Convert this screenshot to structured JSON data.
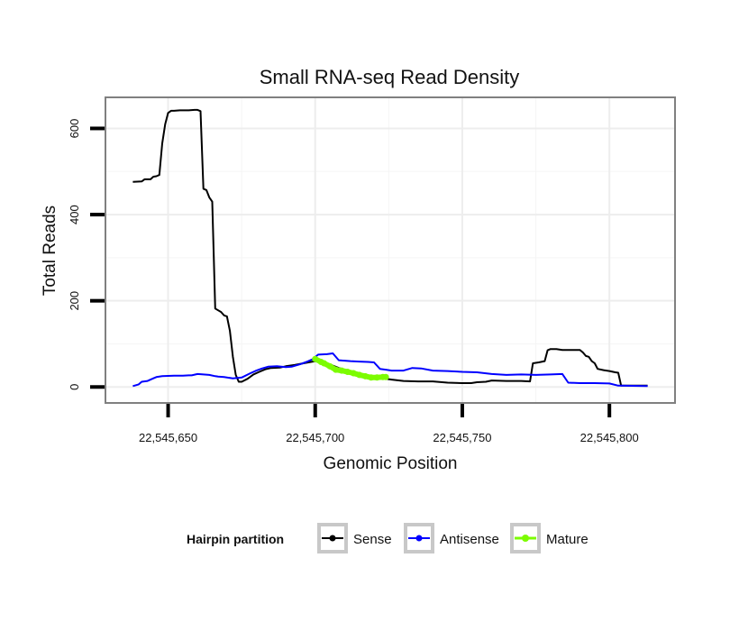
{
  "chart_data": {
    "type": "line",
    "title": "Small RNA-seq Read Density",
    "xlabel": "Genomic Position",
    "ylabel": "Total Reads",
    "xlim": [
      22545629,
      22545822
    ],
    "ylim": [
      -35,
      670
    ],
    "x_ticks": [
      {
        "value": 22545650,
        "label": "22,545,650"
      },
      {
        "value": 22545700,
        "label": "22,545,700"
      },
      {
        "value": 22545750,
        "label": "22,545,750"
      },
      {
        "value": 22545800,
        "label": "22,545,800"
      }
    ],
    "y_ticks": [
      {
        "value": 0,
        "label": "0"
      },
      {
        "value": 200,
        "label": "200"
      },
      {
        "value": 400,
        "label": "400"
      },
      {
        "value": 600,
        "label": "600"
      }
    ],
    "legend": {
      "title": "Hairpin partition",
      "position": "bottom",
      "entries": [
        {
          "label": "Sense",
          "color": "#000000"
        },
        {
          "label": "Antisense",
          "color": "#0000ff"
        },
        {
          "label": "Mature",
          "color": "#7cfc00"
        }
      ]
    },
    "series": [
      {
        "name": "Sense",
        "color": "#000000",
        "points": [
          [
            22545638,
            476
          ],
          [
            22545641,
            477
          ],
          [
            22545642,
            482
          ],
          [
            22545644,
            482
          ],
          [
            22545645,
            488
          ],
          [
            22545646,
            489
          ],
          [
            22545647,
            492
          ],
          [
            22545648,
            565
          ],
          [
            22545649,
            610
          ],
          [
            22545650,
            636
          ],
          [
            22545651,
            641
          ],
          [
            22545652,
            641
          ],
          [
            22545654,
            642
          ],
          [
            22545657,
            642
          ],
          [
            22545659,
            643
          ],
          [
            22545660,
            643
          ],
          [
            22545661,
            640
          ],
          [
            22545662,
            460
          ],
          [
            22545663,
            457
          ],
          [
            22545664,
            440
          ],
          [
            22545665,
            430
          ],
          [
            22545666,
            182
          ],
          [
            22545667,
            178
          ],
          [
            22545668,
            174
          ],
          [
            22545669,
            166
          ],
          [
            22545670,
            164
          ],
          [
            22545671,
            130
          ],
          [
            22545672,
            70
          ],
          [
            22545673,
            28
          ],
          [
            22545674,
            12
          ],
          [
            22545675,
            12
          ],
          [
            22545677,
            19
          ],
          [
            22545679,
            29
          ],
          [
            22545681,
            35
          ],
          [
            22545683,
            41
          ],
          [
            22545685,
            44
          ],
          [
            22545688,
            45
          ],
          [
            22545690,
            48
          ],
          [
            22545693,
            51
          ],
          [
            22545696,
            55
          ],
          [
            22545700,
            60
          ],
          [
            22545704,
            55
          ],
          [
            22545708,
            44
          ],
          [
            22545713,
            33
          ],
          [
            22545718,
            26
          ],
          [
            22545722,
            21
          ],
          [
            22545726,
            17
          ],
          [
            22545730,
            14
          ],
          [
            22545735,
            13
          ],
          [
            22545740,
            13
          ],
          [
            22545745,
            10
          ],
          [
            22545750,
            9
          ],
          [
            22545753,
            9
          ],
          [
            22545755,
            11
          ],
          [
            22545758,
            12
          ],
          [
            22545760,
            15
          ],
          [
            22545765,
            14
          ],
          [
            22545770,
            14
          ],
          [
            22545773,
            13
          ],
          [
            22545774,
            55
          ],
          [
            22545776,
            57
          ],
          [
            22545778,
            60
          ],
          [
            22545779,
            85
          ],
          [
            22545780,
            88
          ],
          [
            22545782,
            88
          ],
          [
            22545784,
            86
          ],
          [
            22545789,
            86
          ],
          [
            22545790,
            86
          ],
          [
            22545791,
            80
          ],
          [
            22545792,
            72
          ],
          [
            22545793,
            70
          ],
          [
            22545794,
            60
          ],
          [
            22545795,
            55
          ],
          [
            22545796,
            42
          ],
          [
            22545798,
            39
          ],
          [
            22545800,
            37
          ],
          [
            22545802,
            34
          ],
          [
            22545803,
            33
          ],
          [
            22545804,
            3
          ],
          [
            22545813,
            3
          ]
        ]
      },
      {
        "name": "Antisense",
        "color": "#0000ff",
        "points": [
          [
            22545638,
            2
          ],
          [
            22545640,
            6
          ],
          [
            22545641,
            12
          ],
          [
            22545643,
            14
          ],
          [
            22545645,
            20
          ],
          [
            22545646,
            23
          ],
          [
            22545648,
            25
          ],
          [
            22545652,
            26
          ],
          [
            22545655,
            26
          ],
          [
            22545657,
            27
          ],
          [
            22545658,
            27
          ],
          [
            22545660,
            30
          ],
          [
            22545664,
            28
          ],
          [
            22545666,
            25
          ],
          [
            22545667,
            24
          ],
          [
            22545669,
            23
          ],
          [
            22545672,
            20
          ],
          [
            22545675,
            22
          ],
          [
            22545678,
            32
          ],
          [
            22545680,
            38
          ],
          [
            22545682,
            43
          ],
          [
            22545684,
            47
          ],
          [
            22545687,
            48
          ],
          [
            22545690,
            46
          ],
          [
            22545692,
            47
          ],
          [
            22545695,
            53
          ],
          [
            22545697,
            58
          ],
          [
            22545699,
            64
          ],
          [
            22545701,
            75
          ],
          [
            22545704,
            76
          ],
          [
            22545706,
            78
          ],
          [
            22545708,
            62
          ],
          [
            22545710,
            61
          ],
          [
            22545712,
            60
          ],
          [
            22545715,
            59
          ],
          [
            22545718,
            58
          ],
          [
            22545720,
            57
          ],
          [
            22545722,
            42
          ],
          [
            22545724,
            40
          ],
          [
            22545726,
            38
          ],
          [
            22545730,
            38
          ],
          [
            22545733,
            44
          ],
          [
            22545736,
            43
          ],
          [
            22545740,
            38
          ],
          [
            22545745,
            37
          ],
          [
            22545750,
            35
          ],
          [
            22545755,
            34
          ],
          [
            22545760,
            30
          ],
          [
            22545765,
            28
          ],
          [
            22545770,
            29
          ],
          [
            22545775,
            28
          ],
          [
            22545780,
            29
          ],
          [
            22545784,
            30
          ],
          [
            22545786,
            10
          ],
          [
            22545790,
            9
          ],
          [
            22545795,
            9
          ],
          [
            22545800,
            8
          ],
          [
            22545803,
            3
          ],
          [
            22545813,
            2
          ]
        ]
      },
      {
        "name": "Mature",
        "color": "#7cfc00",
        "points": [
          [
            22545700,
            65
          ],
          [
            22545702,
            58
          ],
          [
            22545703,
            55
          ],
          [
            22545705,
            48
          ],
          [
            22545707,
            40
          ],
          [
            22545709,
            38
          ],
          [
            22545711,
            35
          ],
          [
            22545713,
            32
          ],
          [
            22545715,
            28
          ],
          [
            22545717,
            25
          ],
          [
            22545719,
            22
          ],
          [
            22545721,
            22
          ],
          [
            22545723,
            23
          ],
          [
            22545724,
            23
          ]
        ]
      }
    ]
  }
}
